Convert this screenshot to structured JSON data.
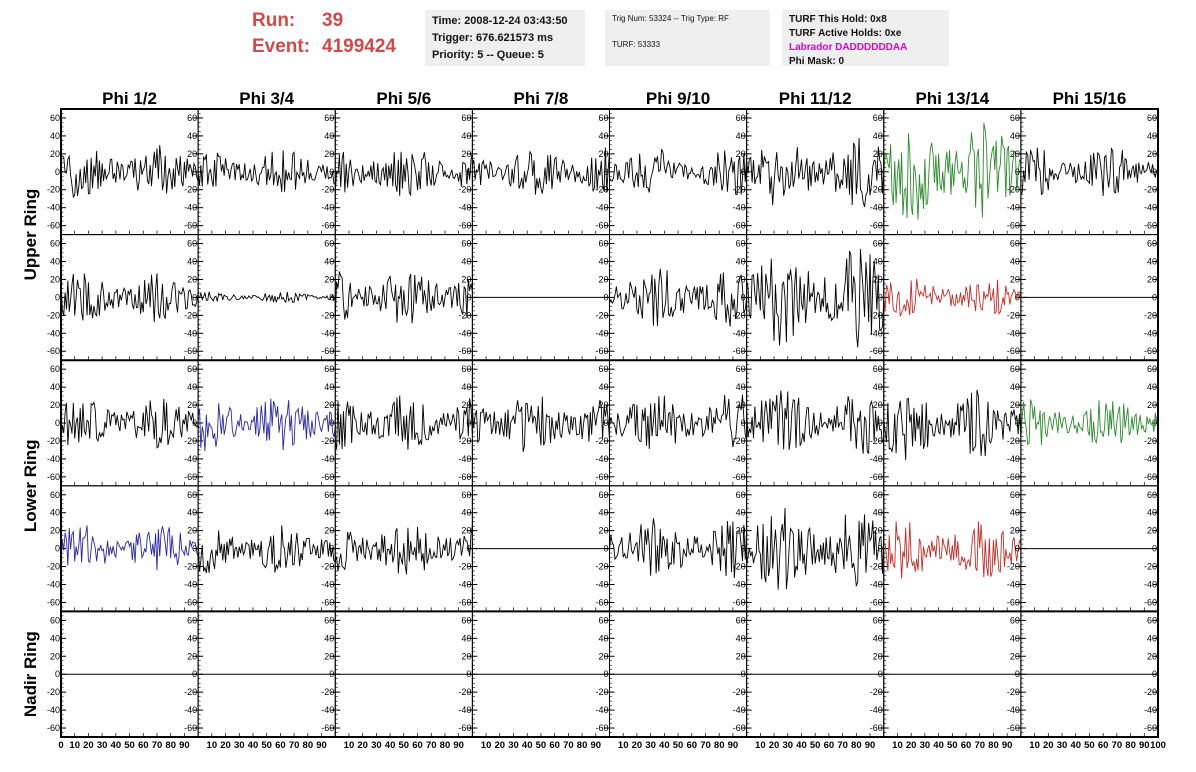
{
  "header": {
    "run_label": "Run:",
    "run_value": "39",
    "event_label": "Event:",
    "event_value": "4199424",
    "time": "Time: 2008-12-24 03:43:50",
    "trigger": "Trigger: 676.621573 ms",
    "priority": "Priority: 5 -- Queue: 5",
    "trig_num": "Trig Num: 53324 -- Trig Type: RF",
    "turf": "TURF: 53333",
    "turf_hold": "TURF This Hold: 0x8",
    "turf_active": "TURF Active Holds: 0xe",
    "labrador": "Labrador DADDDDDDAA",
    "phi_mask": "Phi Mask: 0"
  },
  "colors": {
    "header_red": "#cc4b4b",
    "magenta": "#e000e0",
    "trace_black": "#000000",
    "trace_green": "#2e8b2e",
    "trace_red": "#c0302a",
    "trace_blue": "#2a2aa0"
  },
  "chart_data": {
    "type": "line",
    "columns": [
      "Phi 1/2",
      "Phi 3/4",
      "Phi 5/6",
      "Phi 7/8",
      "Phi 9/10",
      "Phi 11/12",
      "Phi 13/14",
      "Phi 15/16"
    ],
    "rows": [
      "Upper Ring",
      "Lower Ring",
      "Nadir Ring"
    ],
    "ylim": [
      -70,
      70
    ],
    "yticks": [
      -60,
      -40,
      -20,
      0,
      20,
      40,
      60
    ],
    "xlim": [
      0,
      100
    ],
    "xtick_labels": [
      "0",
      "10",
      "20",
      "30",
      "40",
      "50",
      "60",
      "70",
      "80",
      "90",
      "100"
    ],
    "samples": 100,
    "panels": [
      [
        {
          "amp": 20,
          "color": "black"
        },
        {
          "amp": 16,
          "color": "black"
        },
        {
          "amp": 18,
          "color": "black"
        },
        {
          "amp": 18,
          "color": "black"
        },
        {
          "amp": 18,
          "color": "black"
        },
        {
          "amp": 26,
          "color": "black"
        },
        {
          "amp": 38,
          "color": "green"
        },
        {
          "amp": 18,
          "color": "black"
        }
      ],
      [
        {
          "amp": 18,
          "color": "black"
        },
        {
          "amp": 4,
          "color": "black"
        },
        {
          "amp": 20,
          "color": "black"
        },
        {
          "amp": 0,
          "color": "black"
        },
        {
          "amp": 22,
          "color": "black"
        },
        {
          "amp": 36,
          "color": "black"
        },
        {
          "amp": 15,
          "color": "red"
        },
        {
          "amp": 0,
          "color": "black"
        }
      ],
      [
        {
          "amp": 18,
          "color": "black"
        },
        {
          "amp": 20,
          "color": "blue"
        },
        {
          "amp": 22,
          "color": "black"
        },
        {
          "amp": 22,
          "color": "black"
        },
        {
          "amp": 22,
          "color": "black"
        },
        {
          "amp": 24,
          "color": "black"
        },
        {
          "amp": 26,
          "color": "black"
        },
        {
          "amp": 18,
          "color": "green"
        }
      ],
      [
        {
          "amp": 18,
          "color": "blue"
        },
        {
          "amp": 18,
          "color": "black"
        },
        {
          "amp": 20,
          "color": "black"
        },
        {
          "amp": 0,
          "color": "black"
        },
        {
          "amp": 22,
          "color": "black"
        },
        {
          "amp": 32,
          "color": "black"
        },
        {
          "amp": 22,
          "color": "red"
        },
        {
          "amp": 0,
          "color": "black"
        }
      ],
      [
        {
          "amp": 0,
          "color": "black"
        },
        {
          "amp": 0,
          "color": "black"
        },
        {
          "amp": 0,
          "color": "black"
        },
        {
          "amp": 0,
          "color": "black"
        },
        {
          "amp": 0,
          "color": "black"
        },
        {
          "amp": 0,
          "color": "black"
        },
        {
          "amp": 0,
          "color": "black"
        },
        {
          "amp": 0,
          "color": "black"
        }
      ]
    ]
  }
}
